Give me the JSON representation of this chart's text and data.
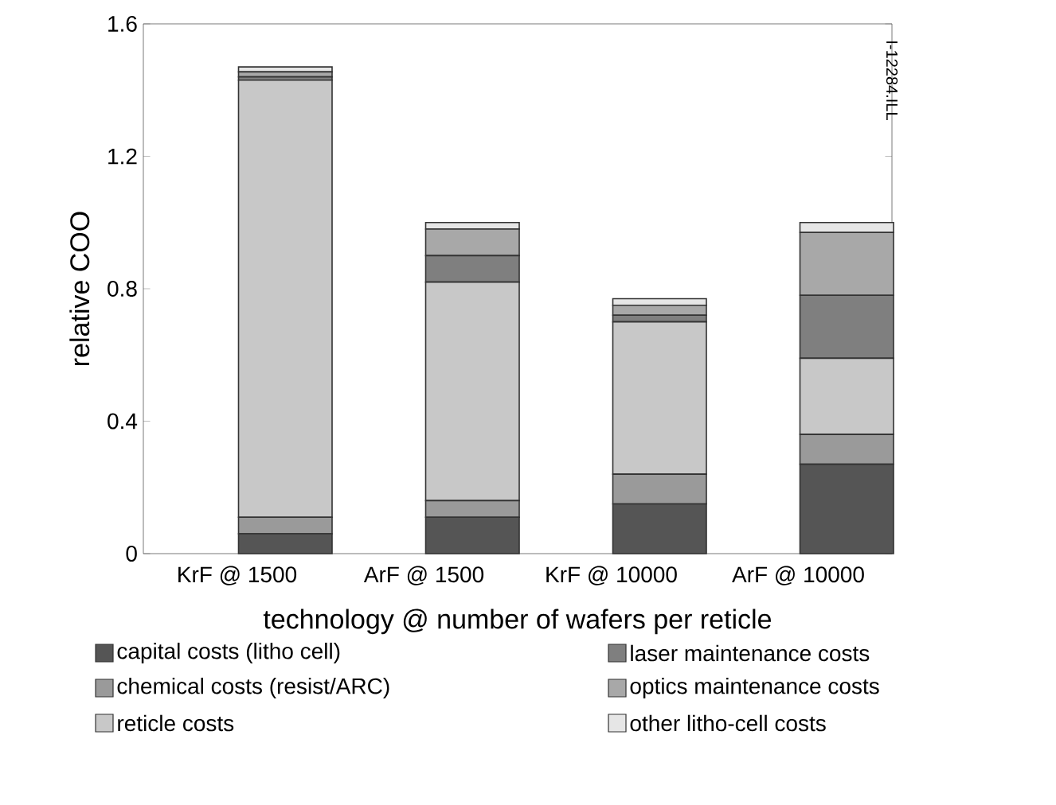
{
  "chart_data": {
    "type": "bar",
    "stacked": true,
    "xlabel": "technology @ number of wafers per reticle",
    "ylabel": "relative COO",
    "categories": [
      "KrF @ 1500",
      "ArF @ 1500",
      "KrF @ 10000",
      "ArF @ 10000"
    ],
    "series": [
      {
        "name": "capital costs (litho cell)",
        "color": "#555555",
        "values": [
          0.06,
          0.11,
          0.15,
          0.27
        ]
      },
      {
        "name": "chemical costs (resist/ARC)",
        "color": "#9a9a9a",
        "values": [
          0.05,
          0.05,
          0.09,
          0.09
        ]
      },
      {
        "name": "reticle costs",
        "color": "#c8c8c8",
        "values": [
          1.32,
          0.66,
          0.46,
          0.23
        ]
      },
      {
        "name": "laser maintenance costs",
        "color": "#7f7f7f",
        "values": [
          0.01,
          0.08,
          0.02,
          0.19
        ]
      },
      {
        "name": "optics maintenance costs",
        "color": "#a8a8a8",
        "values": [
          0.015,
          0.08,
          0.03,
          0.19
        ]
      },
      {
        "name": "other litho-cell costs",
        "color": "#e6e6e6",
        "values": [
          0.015,
          0.02,
          0.02,
          0.03
        ]
      }
    ],
    "ylim": [
      0,
      1.6
    ],
    "yticks": [
      0,
      0.4,
      0.8,
      1.2,
      1.6
    ],
    "grid": false,
    "legend": "bottom",
    "annotations": [
      "I-12284.ILL"
    ]
  }
}
